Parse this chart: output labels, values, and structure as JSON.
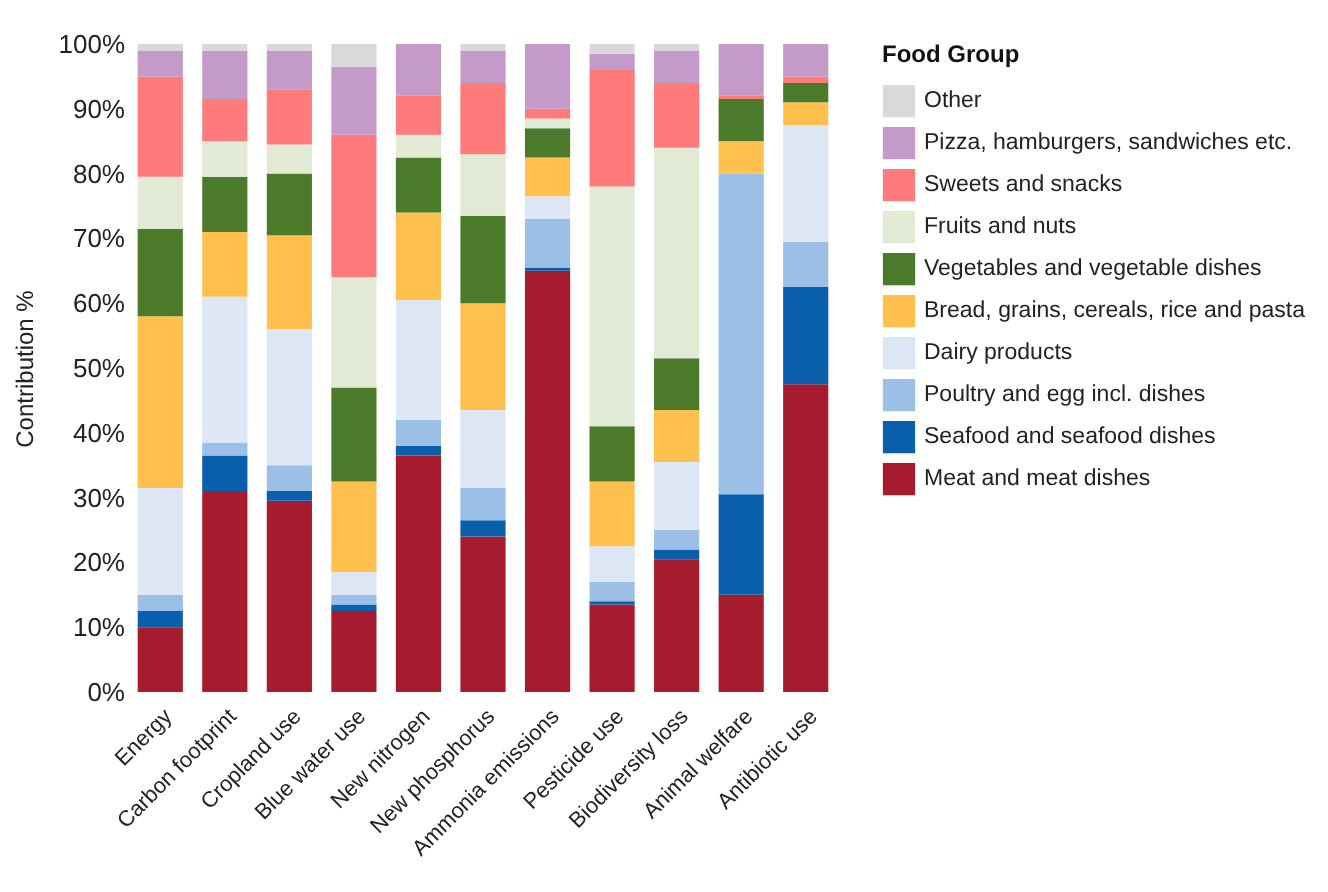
{
  "chart_data": {
    "type": "bar",
    "stacked": true,
    "ylabel": "Contribution %",
    "legend_title": "Food Group",
    "legend": "right",
    "grid": false,
    "categories": [
      "Energy",
      "Carbon footprint",
      "Cropland use",
      "Blue water use",
      "New nitrogen",
      "New phosphorus",
      "Ammonia emissions",
      "Pesticide use",
      "Biodiversity loss",
      "Animal welfare",
      "Antibiotic use"
    ],
    "ylim": [
      0,
      100
    ],
    "yticks": [
      {
        "value": 0,
        "label": "0%"
      },
      {
        "value": 10,
        "label": "10%"
      },
      {
        "value": 20,
        "label": "20%"
      },
      {
        "value": 30,
        "label": "30%"
      },
      {
        "value": 40,
        "label": "40%"
      },
      {
        "value": 50,
        "label": "50%"
      },
      {
        "value": 60,
        "label": "60%"
      },
      {
        "value": 70,
        "label": "70%"
      },
      {
        "value": 80,
        "label": "80%"
      },
      {
        "value": 90,
        "label": "90%"
      },
      {
        "value": 100,
        "label": "100%"
      }
    ],
    "series": [
      {
        "name": "Meat and meat dishes",
        "color": "#a61c2e",
        "values": [
          10,
          31,
          29.5,
          12.5,
          36.5,
          24,
          65,
          13.5,
          20.5,
          15,
          47.5
        ]
      },
      {
        "name": "Seafood and seafood dishes",
        "color": "#0a5fad",
        "values": [
          2.5,
          5.5,
          1.5,
          1,
          1.5,
          2.5,
          0.5,
          0.5,
          1.5,
          15.5,
          15
        ]
      },
      {
        "name": "Poultry and egg incl. dishes",
        "color": "#9bbfe6",
        "values": [
          2.5,
          2,
          4,
          1.5,
          4,
          5,
          7.5,
          3,
          3,
          49.5,
          7
        ]
      },
      {
        "name": "Dairy products",
        "color": "#dce6f5",
        "values": [
          16.5,
          22.5,
          21,
          3.5,
          18.5,
          12,
          3.5,
          5.5,
          10.5,
          0,
          18
        ]
      },
      {
        "name": "Bread, grains, cereals, rice and pasta",
        "color": "#ffc04d",
        "values": [
          26.5,
          10,
          14.5,
          14,
          13.5,
          16.5,
          6,
          10,
          8,
          5,
          3.5
        ]
      },
      {
        "name": "Vegetables and vegetable dishes",
        "color": "#4a7a2a",
        "values": [
          13.5,
          8.5,
          9.5,
          14.5,
          8.5,
          13.5,
          4.5,
          8.5,
          8,
          6.5,
          3
        ]
      },
      {
        "name": "Fruits and nuts",
        "color": "#e2ead6",
        "values": [
          8,
          5.5,
          4.5,
          17,
          3.5,
          9.5,
          1.5,
          37,
          32.5,
          0,
          0
        ]
      },
      {
        "name": "Sweets and snacks",
        "color": "#ff7b7b",
        "values": [
          15.5,
          6.5,
          8.5,
          22,
          6,
          11,
          1.5,
          18,
          10,
          0.5,
          1
        ]
      },
      {
        "name": "Pizza, hamburgers, sandwiches etc.",
        "color": "#c49ac9",
        "values": [
          4,
          7.5,
          6,
          10.5,
          8,
          5,
          10,
          2.5,
          5,
          8,
          5
        ]
      },
      {
        "name": "Other",
        "color": "#d9d9d9",
        "values": [
          1,
          1,
          1,
          3.5,
          0,
          1,
          0,
          1.5,
          1,
          0,
          0
        ]
      }
    ]
  }
}
